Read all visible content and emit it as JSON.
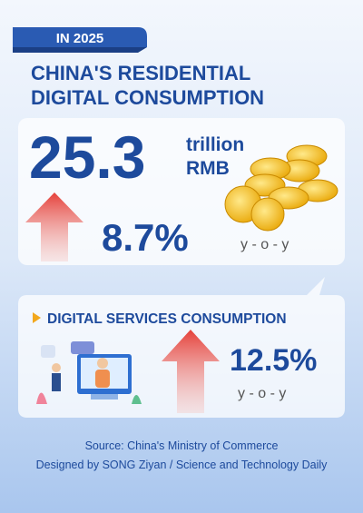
{
  "header": {
    "tag": "IN 2025",
    "title_lines": [
      "CHINA'S RESIDENTIAL",
      "DIGITAL CONSUMPTION"
    ]
  },
  "main_card": {
    "amount": "25.3",
    "unit_lines": [
      "trillion",
      "RMB"
    ],
    "growth": "8.7%",
    "growth_note": "y - o - y"
  },
  "services_card": {
    "title": "DIGITAL SERVICES CONSUMPTION",
    "growth": "12.5%",
    "growth_note": "y - o - y"
  },
  "footer": {
    "lines": [
      "Source: China's Ministry of Commerce",
      "Designed by SONG Ziyan / Science and Technology Daily"
    ]
  }
}
